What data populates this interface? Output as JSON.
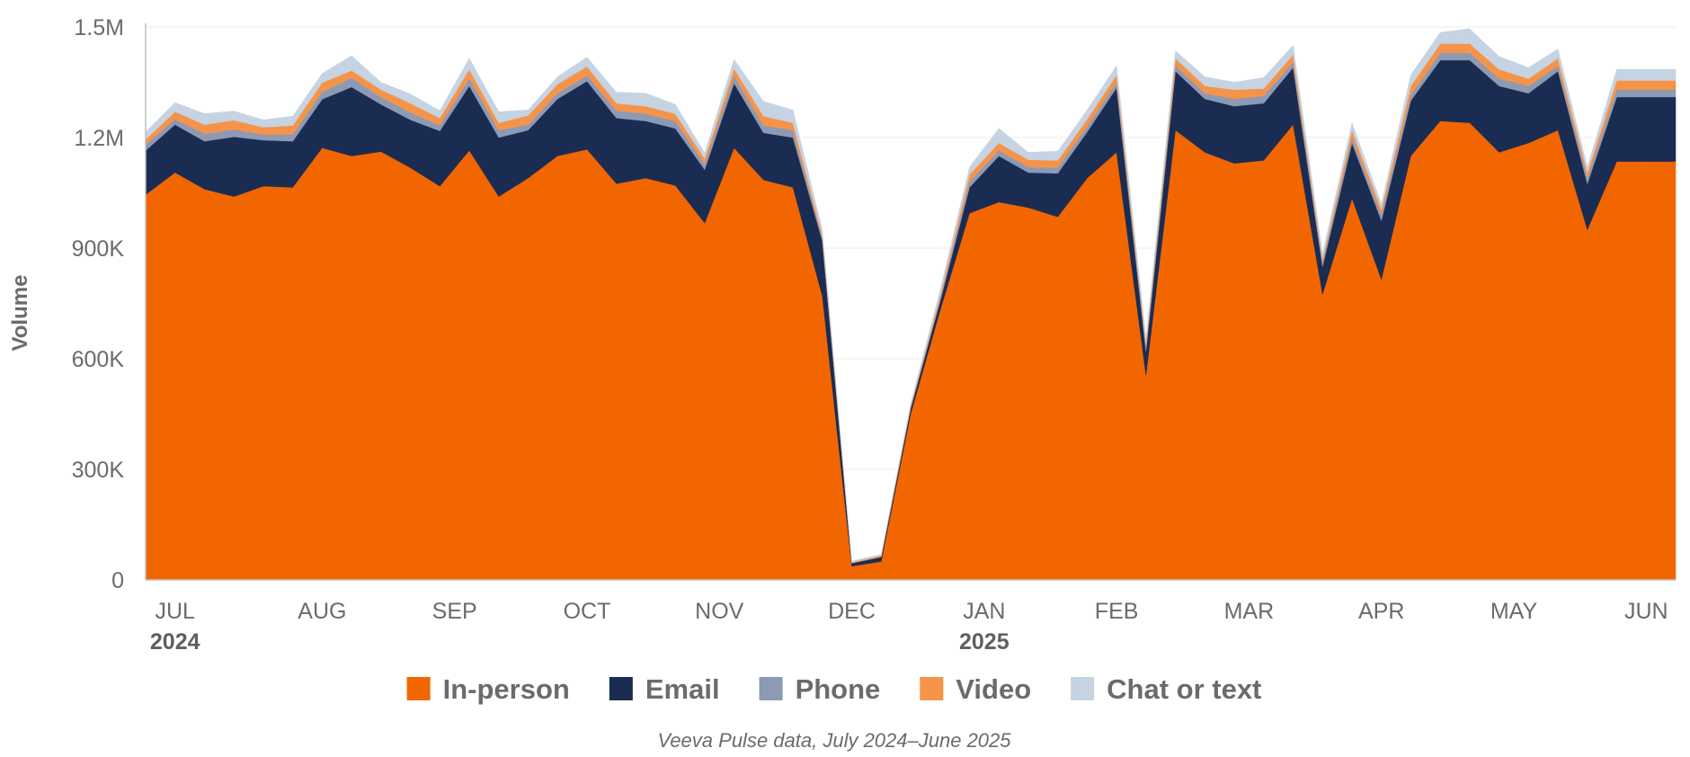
{
  "chart_data": {
    "type": "area",
    "stacked": true,
    "ylabel": "Volume",
    "ylim": [
      0,
      1500000
    ],
    "y_ticks": [
      0,
      300000,
      600000,
      900000,
      1200000,
      1500000
    ],
    "y_tick_labels": [
      "0",
      "300K",
      "600K",
      "900K",
      "1.2M",
      "1.5M"
    ],
    "x_ticks": [
      {
        "week": 1,
        "label": "JUL",
        "year": "2024"
      },
      {
        "week": 6,
        "label": "AUG",
        "year": ""
      },
      {
        "week": 10.5,
        "label": "SEP",
        "year": ""
      },
      {
        "week": 15,
        "label": "OCT",
        "year": ""
      },
      {
        "week": 19.5,
        "label": "NOV",
        "year": ""
      },
      {
        "week": 24,
        "label": "DEC",
        "year": ""
      },
      {
        "week": 28.5,
        "label": "JAN",
        "year": "2025"
      },
      {
        "week": 33,
        "label": "FEB",
        "year": ""
      },
      {
        "week": 37.5,
        "label": "MAR",
        "year": ""
      },
      {
        "week": 42,
        "label": "APR",
        "year": ""
      },
      {
        "week": 46.5,
        "label": "MAY",
        "year": ""
      },
      {
        "week": 51,
        "label": "JUN",
        "year": ""
      }
    ],
    "x": [
      0,
      1,
      2,
      3,
      4,
      5,
      6,
      7,
      8,
      9,
      10,
      11,
      12,
      13,
      14,
      15,
      16,
      17,
      18,
      19,
      20,
      21,
      22,
      23,
      24,
      25,
      26,
      27,
      28,
      29,
      30,
      31,
      32,
      33,
      34,
      35,
      36,
      37,
      38,
      39,
      40,
      41,
      42,
      43,
      44,
      45,
      46,
      47,
      48,
      49,
      50,
      51,
      52
    ],
    "series": [
      {
        "name": "In-person",
        "color": "#F26600",
        "values": [
          1045000,
          1105000,
          1060000,
          1040000,
          1068000,
          1065000,
          1172000,
          1150000,
          1162000,
          1118000,
          1068000,
          1165000,
          1040000,
          1090000,
          1150000,
          1168000,
          1075000,
          1090000,
          1070000,
          968000,
          1172000,
          1085000,
          1065000,
          770000,
          37000,
          50000,
          450000,
          730000,
          995000,
          1025000,
          1010000,
          985000,
          1090000,
          1160000,
          555000,
          1220000,
          1160000,
          1130000,
          1138000,
          1235000,
          775000,
          1035000,
          815000,
          1150000,
          1245000,
          1240000,
          1160000,
          1185000,
          1220000,
          950000,
          1135000,
          1135000,
          1135000
        ]
      },
      {
        "name": "Email",
        "color": "#1B2C52",
        "values": [
          120000,
          130000,
          130000,
          162000,
          125000,
          125000,
          132000,
          187000,
          128000,
          130000,
          150000,
          175000,
          160000,
          130000,
          155000,
          185000,
          178000,
          155000,
          155000,
          145000,
          175000,
          128000,
          135000,
          150000,
          8000,
          12000,
          15000,
          25000,
          70000,
          125000,
          95000,
          118000,
          125000,
          175000,
          65000,
          160000,
          145000,
          155000,
          155000,
          155000,
          75000,
          150000,
          160000,
          150000,
          165000,
          170000,
          180000,
          135000,
          160000,
          125000,
          175000,
          175000,
          175000
        ]
      },
      {
        "name": "Phone",
        "color": "#8C9AB5",
        "values": [
          15000,
          15000,
          20000,
          20000,
          15000,
          18000,
          20000,
          25000,
          20000,
          20000,
          15000,
          20000,
          20000,
          15000,
          15000,
          15000,
          20000,
          20000,
          20000,
          15000,
          20000,
          20000,
          20000,
          5000,
          1000,
          1000,
          2000,
          5000,
          15000,
          15000,
          15000,
          15000,
          15000,
          15000,
          10000,
          15000,
          15000,
          20000,
          20000,
          15000,
          10000,
          15000,
          15000,
          15000,
          20000,
          20000,
          20000,
          20000,
          15000,
          15000,
          20000,
          20000,
          20000
        ]
      },
      {
        "name": "Video",
        "color": "#F59449",
        "values": [
          15000,
          20000,
          25000,
          25000,
          20000,
          25000,
          25000,
          20000,
          20000,
          25000,
          20000,
          25000,
          20000,
          25000,
          25000,
          25000,
          20000,
          20000,
          20000,
          15000,
          20000,
          25000,
          20000,
          10000,
          2000,
          3000,
          5000,
          10000,
          20000,
          20000,
          20000,
          20000,
          20000,
          20000,
          10000,
          20000,
          20000,
          25000,
          20000,
          20000,
          10000,
          20000,
          15000,
          25000,
          25000,
          25000,
          25000,
          20000,
          20000,
          15000,
          25000,
          25000,
          25000
        ]
      },
      {
        "name": "Chat or text",
        "color": "#C5D3E2",
        "values": [
          20000,
          25000,
          30000,
          25000,
          20000,
          25000,
          25000,
          40000,
          20000,
          25000,
          20000,
          30000,
          30000,
          15000,
          20000,
          25000,
          30000,
          35000,
          25000,
          15000,
          25000,
          40000,
          35000,
          15000,
          3000,
          3000,
          5000,
          15000,
          20000,
          40000,
          20000,
          25000,
          25000,
          25000,
          15000,
          20000,
          25000,
          20000,
          30000,
          25000,
          15000,
          20000,
          15000,
          30000,
          30000,
          40000,
          35000,
          30000,
          25000,
          15000,
          30000,
          30000,
          30000
        ]
      }
    ],
    "legend": {
      "position": "bottom",
      "entries": [
        "In-person",
        "Email",
        "Phone",
        "Video",
        "Chat or text"
      ]
    },
    "caption": "Veeva Pulse data, July 2024–June 2025",
    "grid": "horizontal"
  }
}
